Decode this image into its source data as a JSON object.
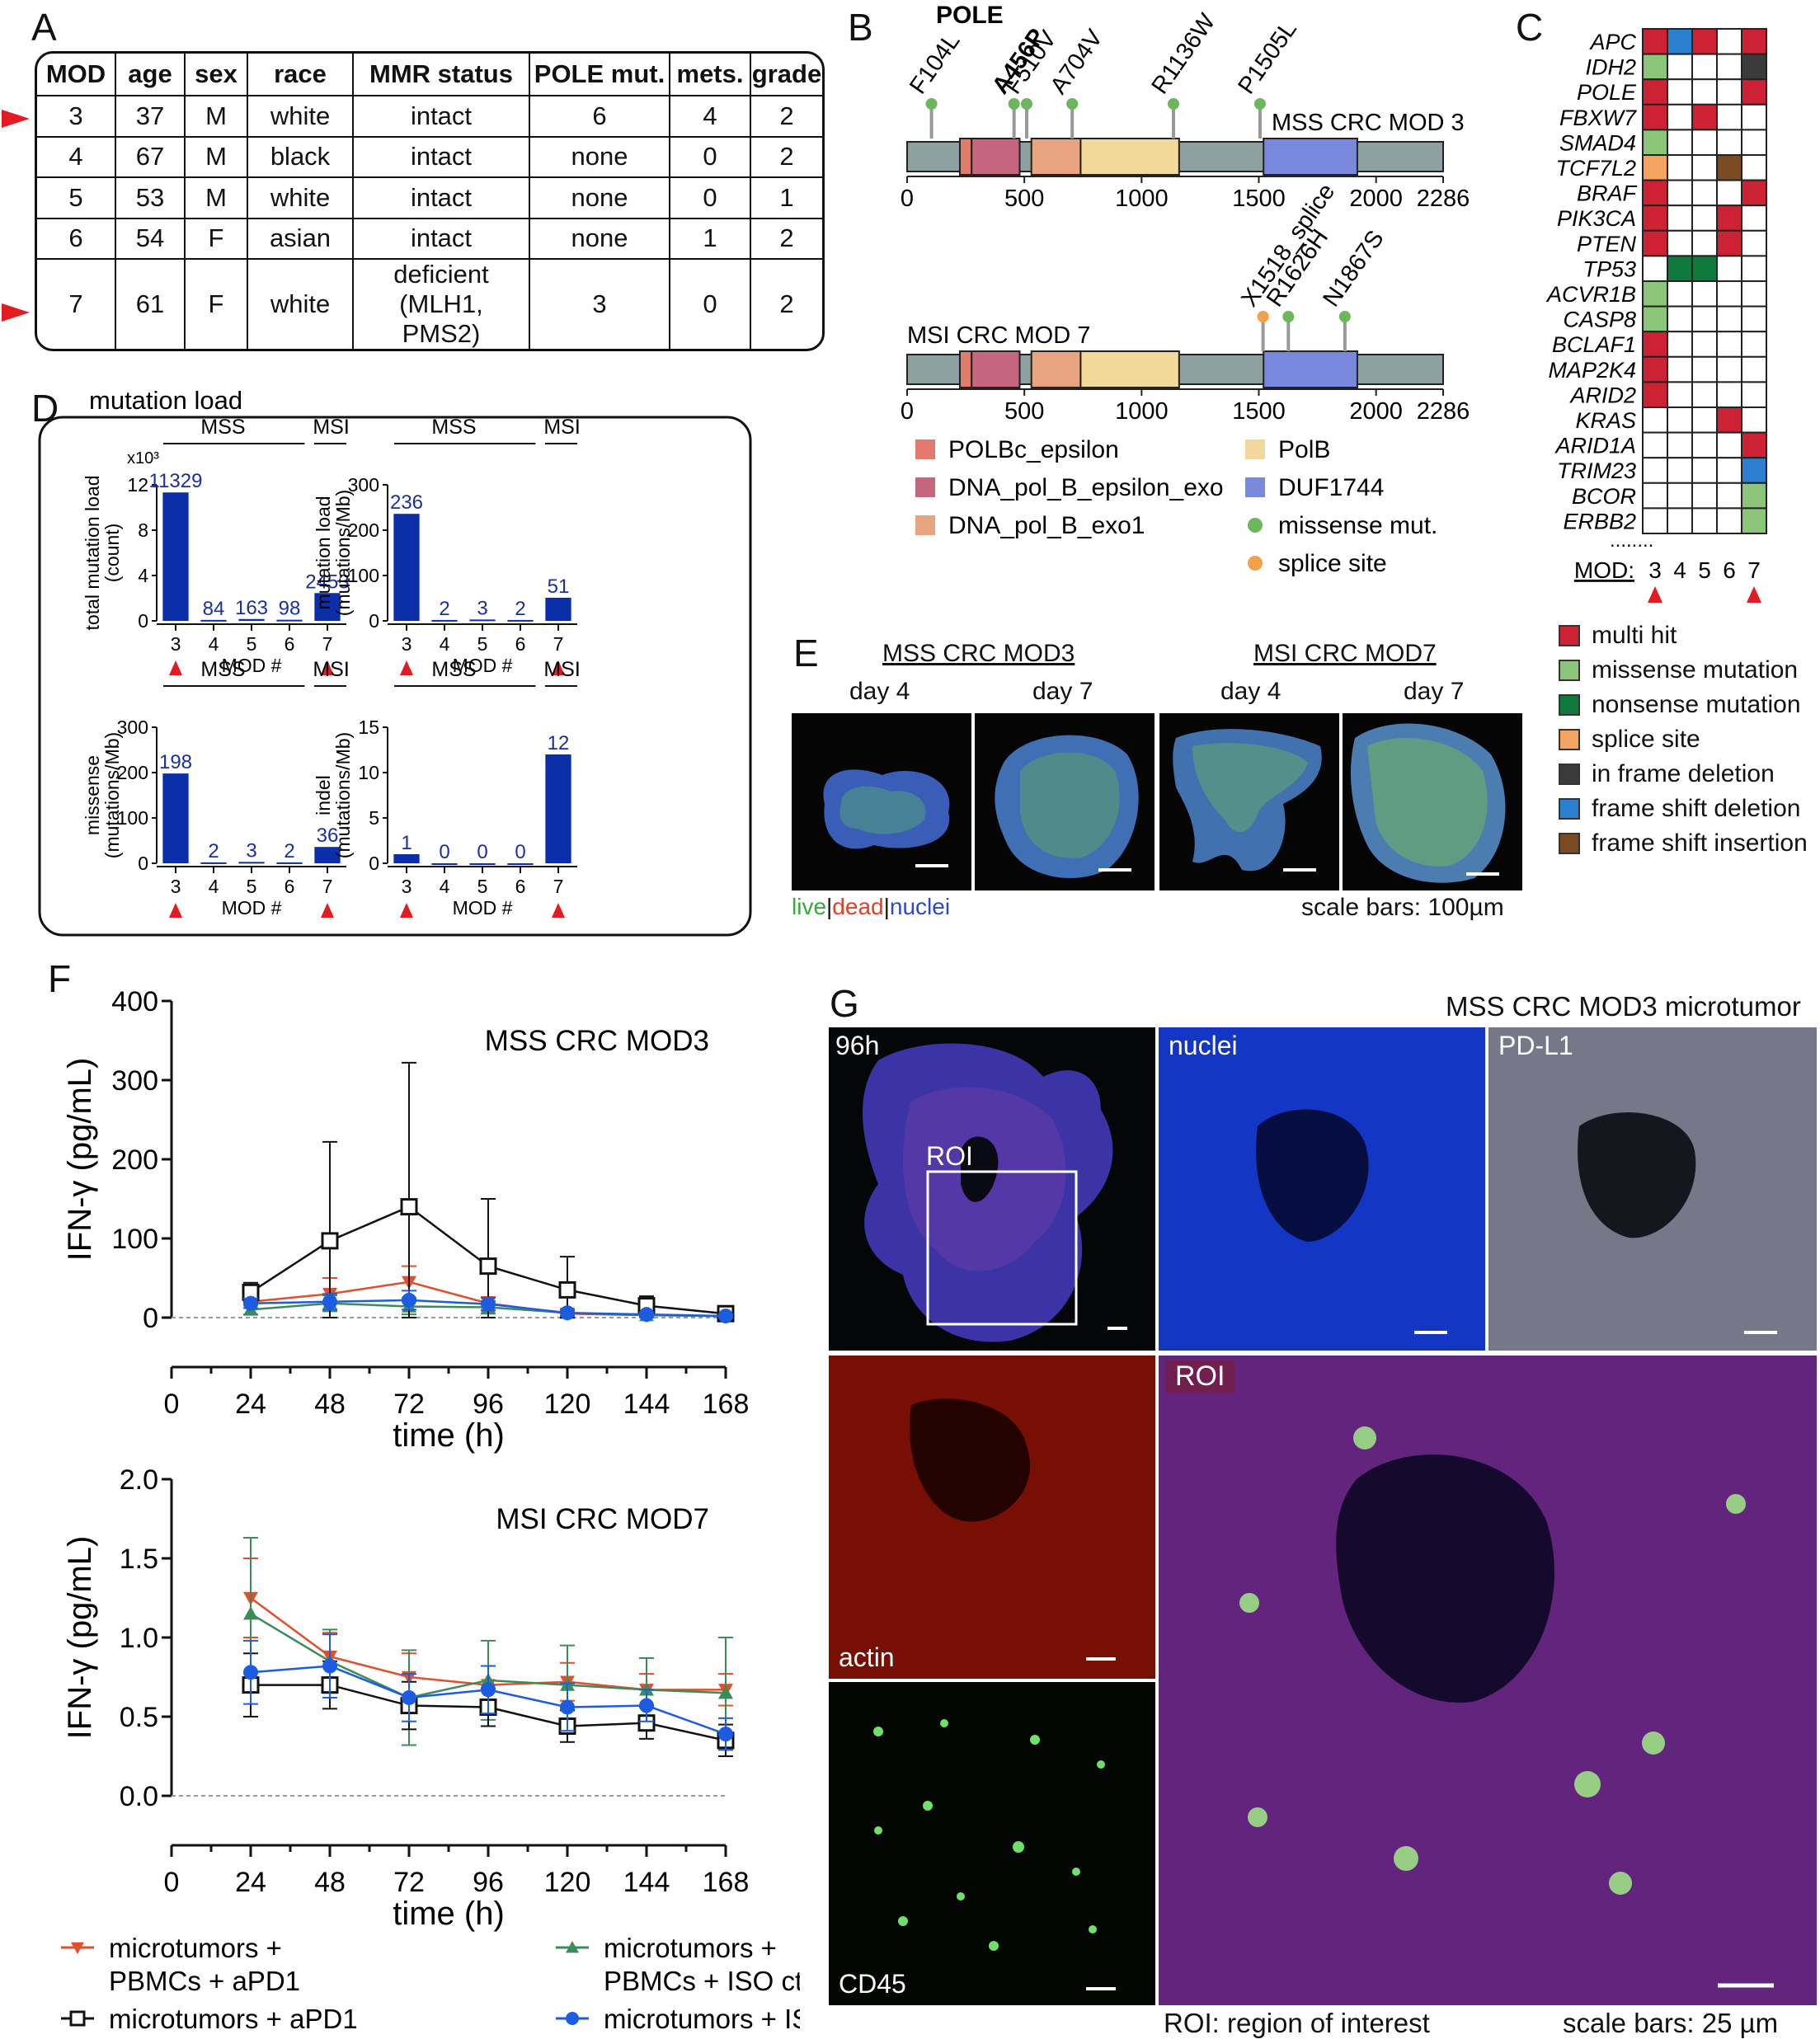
{
  "panels": {
    "A": "A",
    "B": "B",
    "C": "C",
    "D": "D",
    "E": "E",
    "F": "F",
    "G": "G"
  },
  "tableA": {
    "headers": [
      "MOD",
      "age",
      "sex",
      "race",
      "MMR status",
      "POLE mut.",
      "mets.",
      "grade"
    ],
    "rows": [
      [
        "3",
        "37",
        "M",
        "white",
        "intact",
        "6",
        "4",
        "2"
      ],
      [
        "4",
        "67",
        "M",
        "black",
        "intact",
        "none",
        "0",
        "2"
      ],
      [
        "5",
        "53",
        "M",
        "white",
        "intact",
        "none",
        "0",
        "1"
      ],
      [
        "6",
        "54",
        "F",
        "asian",
        "intact",
        "none",
        "1",
        "2"
      ],
      [
        "7",
        "61",
        "F",
        "white",
        "deficient (MLH1, PMS2)",
        "3",
        "0",
        "2"
      ]
    ],
    "highlighted_rows": [
      "3",
      "7"
    ]
  },
  "panelB": {
    "gene": "POLE",
    "top": {
      "label": "MSS CRC MOD 3",
      "mutations": [
        {
          "name": "F104L",
          "pos": 104,
          "type": "missense",
          "bold": false
        },
        {
          "name": "A456P",
          "pos": 456,
          "type": "missense",
          "bold": true
        },
        {
          "name": "F510V",
          "pos": 510,
          "type": "missense",
          "bold": false
        },
        {
          "name": "A704V",
          "pos": 704,
          "type": "missense",
          "bold": false
        },
        {
          "name": "R1136W",
          "pos": 1136,
          "type": "missense",
          "bold": false
        },
        {
          "name": "P1505L",
          "pos": 1505,
          "type": "missense",
          "bold": false
        }
      ]
    },
    "bottom": {
      "label": "MSI CRC MOD 7",
      "mutations": [
        {
          "name": "X1518_splice",
          "pos": 1518,
          "type": "splice",
          "bold": false
        },
        {
          "name": "R1626H",
          "pos": 1626,
          "type": "missense",
          "bold": false
        },
        {
          "name": "N1867S",
          "pos": 1867,
          "type": "missense",
          "bold": false
        }
      ]
    },
    "length": 2286,
    "ticks": [
      0,
      500,
      1000,
      1500,
      2000,
      2286
    ],
    "domains": [
      {
        "name": "POLBc_epsilon",
        "start": 225,
        "end": 275,
        "color": "#e07b6e"
      },
      {
        "name": "DNA_pol_B_epsilon_exo",
        "start": 275,
        "end": 480,
        "color": "#c5667e"
      },
      {
        "name": "DNA_pol_B_exo1",
        "start": 530,
        "end": 740,
        "color": "#e8a47f"
      },
      {
        "name": "PolB",
        "start": 740,
        "end": 1160,
        "color": "#f2d89a"
      },
      {
        "name": "DUF1744",
        "start": 1520,
        "end": 1920,
        "color": "#7788dd"
      }
    ],
    "legend": [
      {
        "label": "POLBc_epsilon",
        "color": "#e07b6e",
        "shape": "square"
      },
      {
        "label": "PolB",
        "color": "#f2d89a",
        "shape": "square"
      },
      {
        "label": "DNA_pol_B_epsilon_exo",
        "color": "#c5667e",
        "shape": "square"
      },
      {
        "label": "DUF1744",
        "color": "#7788dd",
        "shape": "square"
      },
      {
        "label": "DNA_pol_B_exo1",
        "color": "#e8a47f",
        "shape": "square"
      },
      {
        "label": "missense mut.",
        "color": "#6cb65b",
        "shape": "circle"
      },
      {
        "label": "splice site",
        "color": "#f4a04a",
        "shape": "circle"
      }
    ]
  },
  "panelC": {
    "genes": [
      "APC",
      "IDH2",
      "POLE",
      "FBXW7",
      "SMAD4",
      "TCF7L2",
      "BRAF",
      "PIK3CA",
      "PTEN",
      "TP53",
      "ACVR1B",
      "CASP8",
      "BCLAF1",
      "MAP2K4",
      "ARID2",
      "KRAS",
      "ARID1A",
      "TRIM23",
      "BCOR",
      "ERBB2"
    ],
    "mods": [
      "3",
      "4",
      "5",
      "6",
      "7"
    ],
    "xaxis_label": "MOD:",
    "matrix": [
      [
        "multi",
        "fsdel",
        "multi",
        "none",
        "multi"
      ],
      [
        "missense",
        "none",
        "none",
        "none",
        "inframe"
      ],
      [
        "multi",
        "none",
        "none",
        "none",
        "multi"
      ],
      [
        "multi",
        "none",
        "multi",
        "none",
        "none"
      ],
      [
        "missense",
        "none",
        "none",
        "none",
        "none"
      ],
      [
        "splice",
        "none",
        "none",
        "fsins",
        "none"
      ],
      [
        "multi",
        "none",
        "none",
        "none",
        "multi"
      ],
      [
        "multi",
        "none",
        "none",
        "multi",
        "none"
      ],
      [
        "multi",
        "none",
        "none",
        "multi",
        "none"
      ],
      [
        "none",
        "nonsense",
        "nonsense",
        "none",
        "none"
      ],
      [
        "missense",
        "none",
        "none",
        "none",
        "none"
      ],
      [
        "missense",
        "none",
        "none",
        "none",
        "none"
      ],
      [
        "multi",
        "none",
        "none",
        "none",
        "none"
      ],
      [
        "multi",
        "none",
        "none",
        "none",
        "none"
      ],
      [
        "multi",
        "none",
        "none",
        "none",
        "none"
      ],
      [
        "none",
        "none",
        "none",
        "multi",
        "none"
      ],
      [
        "none",
        "none",
        "none",
        "none",
        "multi"
      ],
      [
        "none",
        "none",
        "none",
        "none",
        "fsdel"
      ],
      [
        "none",
        "none",
        "none",
        "none",
        "missense"
      ],
      [
        "none",
        "none",
        "none",
        "none",
        "missense"
      ]
    ],
    "legend": [
      {
        "key": "multi",
        "label": "multi hit",
        "color": "#cc2233"
      },
      {
        "key": "missense",
        "label": "missense mutation",
        "color": "#8cc47a"
      },
      {
        "key": "nonsense",
        "label": "nonsense mutation",
        "color": "#0f7a3c"
      },
      {
        "key": "splice",
        "label": "splice site",
        "color": "#f4a460"
      },
      {
        "key": "inframe",
        "label": "in frame deletion",
        "color": "#3b3b3b"
      },
      {
        "key": "fsdel",
        "label": "frame shift deletion",
        "color": "#2a7fcf"
      },
      {
        "key": "fsins",
        "label": "frame shift insertion",
        "color": "#7a4a22"
      }
    ]
  },
  "chart_data": [
    {
      "type": "bar",
      "panel": "D",
      "title": "mutation load",
      "ylabel": "total mutation load (count)",
      "ymult": "x10³",
      "xlabel": "MOD #",
      "categories": [
        "3",
        "4",
        "5",
        "6",
        "7"
      ],
      "values": [
        11329,
        84,
        163,
        98,
        2453
      ],
      "value_labels": [
        "11329",
        "84",
        "163",
        "98",
        "2453"
      ],
      "ylim": [
        0,
        12000
      ],
      "yticks": [
        0,
        4,
        8,
        12
      ],
      "yscale": 1000,
      "groups": [
        "MSS",
        "MSI"
      ]
    },
    {
      "type": "bar",
      "panel": "D",
      "ylabel": "mutation load (mutations/Mb)",
      "xlabel": "MOD #",
      "categories": [
        "3",
        "4",
        "5",
        "6",
        "7"
      ],
      "values": [
        236,
        2,
        3,
        2,
        51
      ],
      "value_labels": [
        "236",
        "2",
        "3",
        "2",
        "51"
      ],
      "ylim": [
        0,
        300
      ],
      "yticks": [
        0,
        100,
        200,
        300
      ],
      "yscale": 1,
      "groups": [
        "MSS",
        "MSI"
      ]
    },
    {
      "type": "bar",
      "panel": "D",
      "ylabel": "missense (mutations/Mb)",
      "xlabel": "MOD #",
      "categories": [
        "3",
        "4",
        "5",
        "6",
        "7"
      ],
      "values": [
        198,
        2,
        3,
        2,
        36
      ],
      "value_labels": [
        "198",
        "2",
        "3",
        "2",
        "36"
      ],
      "ylim": [
        0,
        300
      ],
      "yticks": [
        0,
        100,
        200,
        300
      ],
      "yscale": 1,
      "groups": [
        "MSS",
        "MSI"
      ]
    },
    {
      "type": "bar",
      "panel": "D",
      "ylabel": "indel (mutations/Mb)",
      "xlabel": "MOD #",
      "categories": [
        "3",
        "4",
        "5",
        "6",
        "7"
      ],
      "values": [
        1,
        0,
        0,
        0,
        12
      ],
      "value_labels": [
        "1",
        "0",
        "0",
        "0",
        "12"
      ],
      "ylim": [
        0,
        15
      ],
      "yticks": [
        0,
        5,
        10,
        15
      ],
      "yscale": 1,
      "groups": [
        "MSS",
        "MSI"
      ]
    },
    {
      "type": "line",
      "panel": "F",
      "title": "MSS CRC MOD3",
      "xlabel": "time (h)",
      "ylabel": "IFN-γ (pg/mL)",
      "x": [
        24,
        48,
        72,
        96,
        120,
        144,
        168
      ],
      "xlim": [
        0,
        168
      ],
      "ylim": [
        0,
        400
      ],
      "yticks": [
        0,
        100,
        200,
        300,
        400
      ],
      "series": [
        {
          "name": "microtumors + PBMCs + aPD1",
          "color": "#e0502c",
          "marker": "tri-down",
          "values": [
            20,
            30,
            45,
            18,
            5,
            3,
            2
          ],
          "err": [
            8,
            20,
            20,
            8,
            4,
            3,
            2
          ]
        },
        {
          "name": "microtumors + PBMCs + ISO ctrl",
          "color": "#3c8c5a",
          "marker": "tri-up",
          "values": [
            10,
            18,
            14,
            13,
            6,
            3,
            2
          ],
          "err": [
            6,
            10,
            10,
            8,
            4,
            3,
            2
          ]
        },
        {
          "name": "microtumors + aPD1",
          "color": "#111111",
          "marker": "square",
          "values": [
            32,
            97,
            140,
            65,
            35,
            15,
            5
          ],
          "err": [
            12,
            125,
            182,
            85,
            42,
            12,
            5
          ]
        },
        {
          "name": "microtumors + ISO",
          "color": "#1d5be0",
          "marker": "circle",
          "values": [
            18,
            20,
            22,
            17,
            6,
            4,
            2
          ],
          "err": [
            6,
            10,
            12,
            8,
            4,
            3,
            2
          ]
        }
      ]
    },
    {
      "type": "line",
      "panel": "F",
      "title": "MSI CRC MOD7",
      "xlabel": "time (h)",
      "ylabel": "IFN-γ (pg/mL)",
      "x": [
        24,
        48,
        72,
        96,
        120,
        144,
        168
      ],
      "xlim": [
        0,
        168
      ],
      "ylim": [
        0,
        2
      ],
      "yticks": [
        "0.0",
        "0.5",
        "1.0",
        "1.5",
        "2.0"
      ],
      "series": [
        {
          "name": "microtumors + PBMCs + aPD1",
          "color": "#e0502c",
          "marker": "tri-down",
          "values": [
            1.25,
            0.88,
            0.75,
            0.7,
            0.72,
            0.67,
            0.67
          ],
          "err": [
            0.25,
            0.15,
            0.15,
            0.12,
            0.12,
            0.1,
            0.1
          ]
        },
        {
          "name": "microtumors + PBMCs + ISO ctrl",
          "color": "#3c8c5a",
          "marker": "tri-up",
          "values": [
            1.15,
            0.85,
            0.62,
            0.73,
            0.7,
            0.67,
            0.65
          ],
          "err": [
            0.48,
            0.2,
            0.3,
            0.25,
            0.25,
            0.2,
            0.35
          ]
        },
        {
          "name": "microtumors + aPD1",
          "color": "#111111",
          "marker": "square",
          "values": [
            0.7,
            0.7,
            0.57,
            0.56,
            0.44,
            0.46,
            0.35
          ],
          "err": [
            0.2,
            0.15,
            0.15,
            0.12,
            0.1,
            0.1,
            0.1
          ]
        },
        {
          "name": "microtumors + ISO",
          "color": "#1d5be0",
          "marker": "circle",
          "values": [
            0.78,
            0.82,
            0.62,
            0.67,
            0.56,
            0.57,
            0.39
          ],
          "err": [
            0.2,
            0.2,
            0.15,
            0.15,
            0.15,
            0.1,
            0.1
          ]
        }
      ]
    }
  ],
  "panelE": {
    "groups": [
      "MSS CRC MOD3",
      "MSI CRC MOD7"
    ],
    "days": [
      "day 4",
      "day 7",
      "day 4",
      "day 7"
    ],
    "stain_live": "live",
    "stain_dead": "dead",
    "stain_nuclei": "nuclei",
    "scale": "scale bars: 100µm"
  },
  "panelF_legend": [
    {
      "line1": "microtumors +",
      "line2": "PBMCs + aPD1",
      "color": "#e0502c",
      "marker": "tri-down"
    },
    {
      "line1": "microtumors +",
      "line2": "PBMCs + ISO ctrl",
      "color": "#3c8c5a",
      "marker": "tri-up"
    },
    {
      "line1": "microtumors + aPD1",
      "line2": "",
      "color": "#111111",
      "marker": "square"
    },
    {
      "line1": "microtumors + ISO",
      "line2": "",
      "color": "#1d5be0",
      "marker": "circle"
    }
  ],
  "panelG": {
    "title": "MSS CRC MOD3 microtumor",
    "tiles": {
      "t96": "96h",
      "roi_box": "ROI",
      "nuclei": "nuclei",
      "pdl1": "PD-L1",
      "actin": "actin",
      "cd45": "CD45",
      "roi": "ROI"
    },
    "roi_note": "ROI: region of interest",
    "scale": "scale bars: 25 µm"
  }
}
